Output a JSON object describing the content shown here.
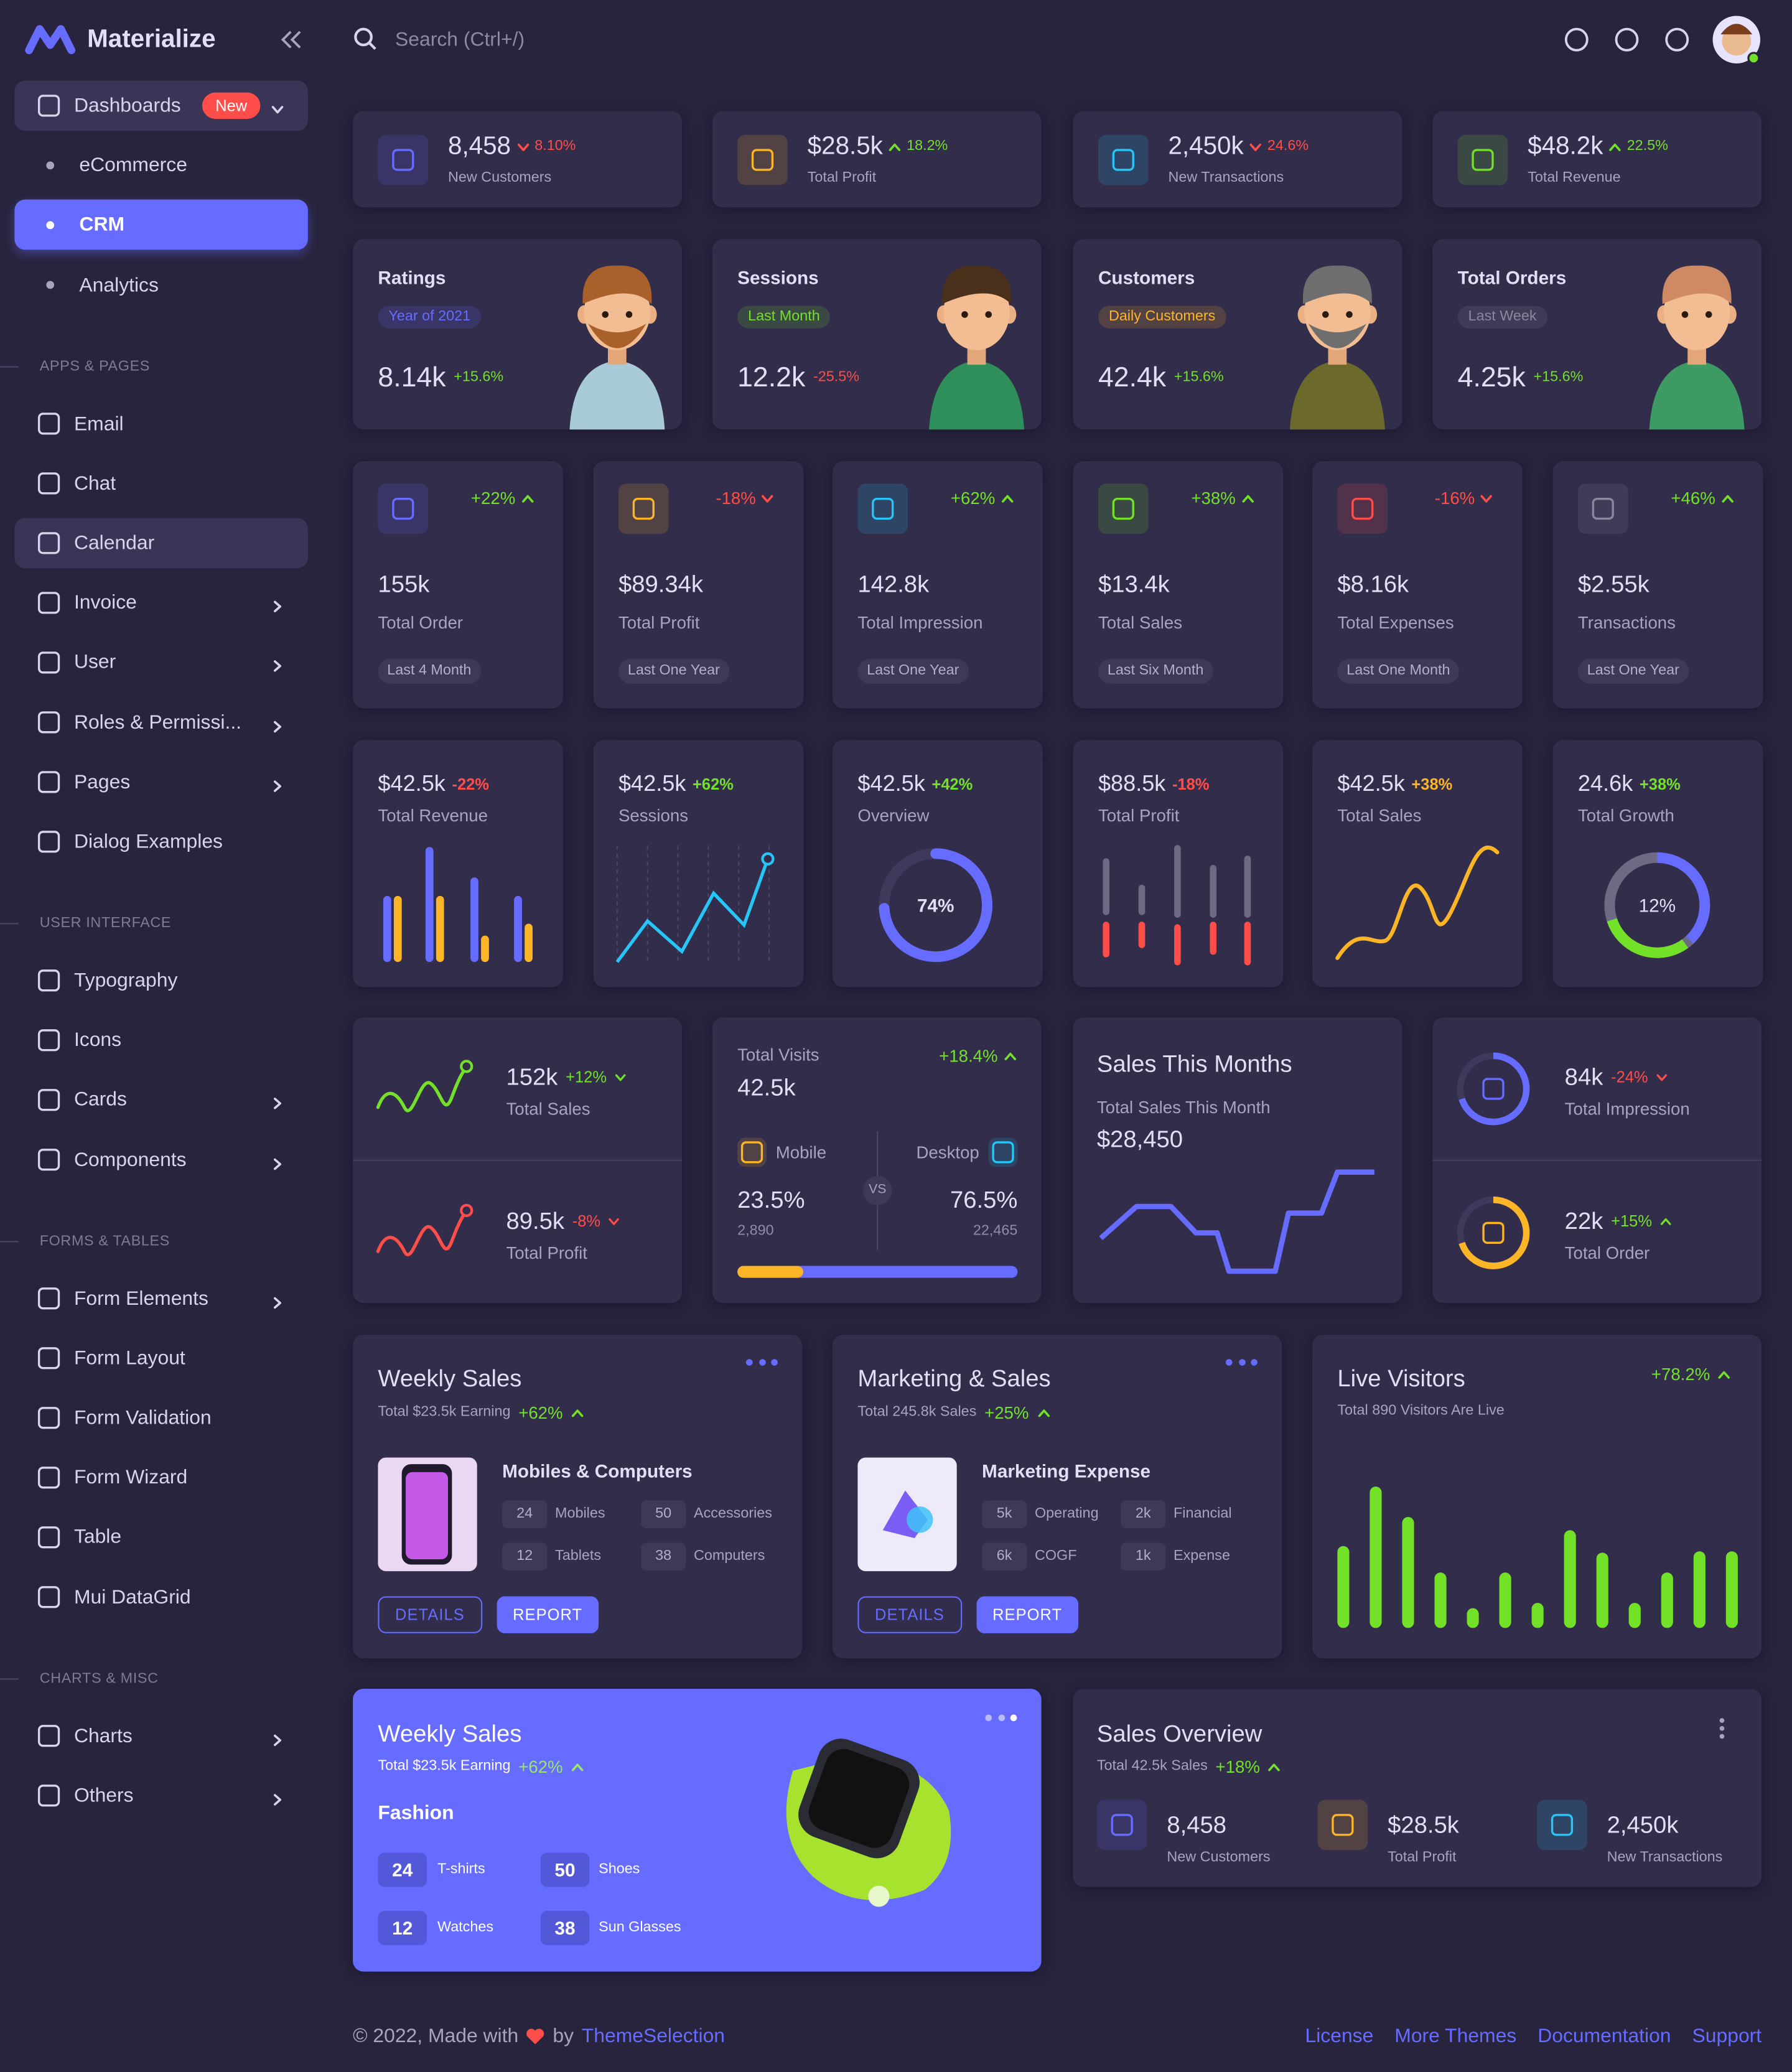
{
  "sidebar": {
    "brand": "Materialize",
    "sections": [
      {
        "items": [
          {
            "label": "Dashboards",
            "badge": "New",
            "arrow": "down",
            "highlight": true
          },
          {
            "label": "eCommerce",
            "sub": true
          },
          {
            "label": "CRM",
            "sub": true,
            "active": true
          },
          {
            "label": "Analytics",
            "sub": true
          }
        ]
      },
      {
        "title": "APPS & PAGES",
        "items": [
          {
            "label": "Email"
          },
          {
            "label": "Chat"
          },
          {
            "label": "Calendar",
            "highlight": true
          },
          {
            "label": "Invoice",
            "arrow": "right"
          },
          {
            "label": "User",
            "arrow": "right"
          },
          {
            "label": "Roles & Permissi...",
            "arrow": "right"
          },
          {
            "label": "Pages",
            "arrow": "right"
          },
          {
            "label": "Dialog Examples"
          }
        ]
      },
      {
        "title": "USER INTERFACE",
        "items": [
          {
            "label": "Typography"
          },
          {
            "label": "Icons"
          },
          {
            "label": "Cards",
            "arrow": "right"
          },
          {
            "label": "Components",
            "arrow": "right"
          }
        ]
      },
      {
        "title": "FORMS & TABLES",
        "items": [
          {
            "label": "Form Elements",
            "arrow": "right"
          },
          {
            "label": "Form Layout"
          },
          {
            "label": "Form Validation"
          },
          {
            "label": "Form Wizard"
          },
          {
            "label": "Table"
          },
          {
            "label": "Mui DataGrid"
          }
        ]
      },
      {
        "title": "CHARTS & MISC",
        "items": [
          {
            "label": "Charts",
            "arrow": "right"
          },
          {
            "label": "Others",
            "arrow": "right"
          }
        ]
      }
    ]
  },
  "topbar": {
    "search": "Search (Ctrl+/)"
  },
  "stats": [
    {
      "value": "8,458",
      "change": "8.10%",
      "label": "New Customers",
      "trend": "down",
      "color": "#666cff"
    },
    {
      "value": "$28.5k",
      "change": "18.2%",
      "label": "Total Profit",
      "trend": "up",
      "color": "#fdb528"
    },
    {
      "value": "2,450k",
      "change": "24.6%",
      "label": "New Transactions",
      "trend": "down",
      "color": "#26c6f9"
    },
    {
      "value": "$48.2k",
      "change": "22.5%",
      "label": "Total Revenue",
      "trend": "up",
      "color": "#72e128"
    }
  ],
  "characters": [
    {
      "title": "Ratings",
      "chip": "Year of 2021",
      "chip_color": "#666cff",
      "value": "8.14k",
      "change": "+15.6%",
      "change_color": "#72e128"
    },
    {
      "title": "Sessions",
      "chip": "Last Month",
      "chip_color": "#72e128",
      "value": "12.2k",
      "change": "-25.5%",
      "change_color": "#ff4d49"
    },
    {
      "title": "Customers",
      "chip": "Daily Customers",
      "chip_color": "#fdb528",
      "value": "42.4k",
      "change": "+15.6%",
      "change_color": "#72e128"
    },
    {
      "title": "Total Orders",
      "chip": "Last Week",
      "chip_color": "#8a87a0",
      "value": "4.25k",
      "change": "+15.6%",
      "change_color": "#72e128"
    }
  ],
  "mini_stats": [
    {
      "change": "+22%",
      "value": "155k",
      "label": "Total Order",
      "chip": "Last 4 Month",
      "color": "#666cff",
      "trend": "up"
    },
    {
      "change": "-18%",
      "value": "$89.34k",
      "label": "Total Profit",
      "chip": "Last One Year",
      "color": "#fdb528",
      "trend": "down"
    },
    {
      "change": "+62%",
      "value": "142.8k",
      "label": "Total Impression",
      "chip": "Last One Year",
      "color": "#26c6f9",
      "trend": "up"
    },
    {
      "change": "+38%",
      "value": "$13.4k",
      "label": "Total Sales",
      "chip": "Last Six Month",
      "color": "#72e128",
      "trend": "up"
    },
    {
      "change": "-16%",
      "value": "$8.16k",
      "label": "Total Expenses",
      "chip": "Last One Month",
      "color": "#ff4d49",
      "trend": "down"
    },
    {
      "change": "+46%",
      "value": "$2.55k",
      "label": "Transactions",
      "chip": "Last One Year",
      "color": "#8a87a0",
      "trend": "up"
    }
  ],
  "chart_cards": [
    {
      "value": "$42.5k",
      "change": "-22%",
      "label": "Total Revenue",
      "change_color": "#ff4d49",
      "chart": "bars"
    },
    {
      "value": "$42.5k",
      "change": "+62%",
      "label": "Sessions",
      "change_color": "#72e128",
      "chart": "line"
    },
    {
      "value": "$42.5k",
      "change": "+42%",
      "label": "Overview",
      "change_color": "#72e128",
      "chart": "donut",
      "center": "74%"
    },
    {
      "value": "$88.5k",
      "change": "-18%",
      "label": "Total Profit",
      "change_color": "#ff4d49",
      "chart": "ticks"
    },
    {
      "value": "$42.5k",
      "change": "+38%",
      "label": "Total Sales",
      "change_color": "#fdb528",
      "chart": "curve"
    },
    {
      "value": "24.6k",
      "change": "+38%",
      "label": "Total Growth",
      "change_color": "#72e128",
      "chart": "ring",
      "center": "12%"
    }
  ],
  "sales_profit": [
    {
      "value": "152k",
      "change": "+12%",
      "label": "Total Sales",
      "color": "#72e128",
      "trend": "down"
    },
    {
      "value": "89.5k",
      "change": "-8%",
      "label": "Total Profit",
      "color": "#ff4d49",
      "trend": "down"
    }
  ],
  "visits": {
    "title": "Total Visits",
    "change": "+18.4%",
    "value": "42.5k",
    "vs": "VS",
    "mobile": {
      "label": "Mobile",
      "percent": "23.5%",
      "count": "2,890"
    },
    "desktop": {
      "label": "Desktop",
      "percent": "76.5%",
      "count": "22,465"
    }
  },
  "sales_month": {
    "title": "Sales This Months",
    "subtitle": "Total Sales This Month",
    "value": "$28,450"
  },
  "impression_order": [
    {
      "value": "84k",
      "change": "-24%",
      "label": "Total Impression",
      "color": "#666cff",
      "trend": "down"
    },
    {
      "value": "22k",
      "change": "+15%",
      "label": "Total Order",
      "color": "#fdb528",
      "trend": "up"
    }
  ],
  "weekly_sales": {
    "title": "Weekly Sales",
    "subtitle": "Total $23.5k Earning",
    "change": "+62%",
    "heading": "Mobiles & Computers",
    "stats": [
      {
        "value": 24,
        "label": "Mobiles"
      },
      {
        "value": 50,
        "label": "Accessories"
      },
      {
        "value": 12,
        "label": "Tablets"
      },
      {
        "value": 38,
        "label": "Computers"
      }
    ],
    "buttons": [
      "DETAILS",
      "REPORT"
    ]
  },
  "marketing": {
    "title": "Marketing & Sales",
    "subtitle": "Total 245.8k Sales",
    "change": "+25%",
    "heading": "Marketing Expense",
    "stats": [
      {
        "value": "5k",
        "label": "Operating"
      },
      {
        "value": "2k",
        "label": "Financial"
      },
      {
        "value": "6k",
        "label": "COGF"
      },
      {
        "value": "1k",
        "label": "Expense"
      }
    ],
    "buttons": [
      "DETAILS",
      "REPORT"
    ]
  },
  "live_visitors": {
    "title": "Live Visitors",
    "change": "+78.2%",
    "subtitle": "Total 890 Visitors Are Live"
  },
  "weekly_fashion": {
    "title": "Weekly Sales",
    "subtitle": "Total $23.5k Earning",
    "change": "+62%",
    "heading": "Fashion",
    "stats": [
      {
        "value": 24,
        "label": "T-shirts"
      },
      {
        "value": 50,
        "label": "Shoes"
      },
      {
        "value": 12,
        "label": "Watches"
      },
      {
        "value": 38,
        "label": "Sun Glasses"
      }
    ]
  },
  "sales_overview": {
    "title": "Sales Overview",
    "subtitle": "Total 42.5k Sales",
    "change": "+18%",
    "items": [
      {
        "value": "8,458",
        "label": "New Customers",
        "color": "#666cff"
      },
      {
        "value": "$28.5k",
        "label": "Total Profit",
        "color": "#fdb528"
      },
      {
        "value": "2,450k",
        "label": "New Transactions",
        "color": "#26c6f9"
      }
    ]
  },
  "footer": {
    "copyright": "© 2022, Made with",
    "by": "by",
    "brand": "ThemeSelection",
    "links": [
      "License",
      "More Themes",
      "Documentation",
      "Support"
    ]
  }
}
